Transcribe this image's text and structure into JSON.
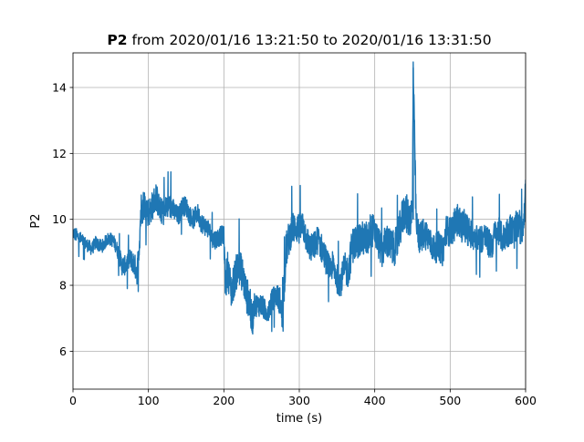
{
  "chart_data": {
    "type": "line",
    "title_bold": "P2",
    "title_rest": " from 2020/01/16 13:21:50 to 2020/01/16 13:31:50",
    "xlabel": "time (s)",
    "ylabel": "P2",
    "xlim": [
      0,
      600
    ],
    "ylim": [
      4.85,
      15.05
    ],
    "xticks": [
      0,
      100,
      200,
      300,
      400,
      500,
      600
    ],
    "yticks": [
      6,
      8,
      10,
      12,
      14
    ],
    "grid": true,
    "series": [
      {
        "color": "#1f77b4",
        "x": [
          0,
          5,
          10,
          15,
          20,
          25,
          30,
          35,
          40,
          45,
          50,
          55,
          60,
          65,
          70,
          75,
          80,
          85,
          88,
          90,
          95,
          100,
          105,
          110,
          115,
          120,
          125,
          130,
          135,
          140,
          145,
          150,
          155,
          160,
          165,
          170,
          175,
          180,
          185,
          190,
          195,
          200,
          202,
          205,
          210,
          215,
          220,
          225,
          230,
          235,
          237,
          240,
          245,
          250,
          255,
          260,
          265,
          270,
          275,
          278,
          282,
          285,
          290,
          295,
          300,
          305,
          310,
          315,
          320,
          325,
          330,
          335,
          340,
          345,
          350,
          355,
          360,
          365,
          370,
          375,
          380,
          385,
          390,
          395,
          400,
          405,
          410,
          415,
          420,
          425,
          430,
          435,
          440,
          445,
          450,
          451,
          455,
          460,
          465,
          470,
          475,
          480,
          485,
          490,
          495,
          500,
          505,
          510,
          515,
          520,
          525,
          530,
          535,
          540,
          545,
          550,
          555,
          560,
          565,
          570,
          575,
          580,
          585,
          590,
          595,
          600
        ],
        "y": [
          9.6,
          9.5,
          9.4,
          9.3,
          9.2,
          9.1,
          9.3,
          9.2,
          9.2,
          9.4,
          9.4,
          9.3,
          9.0,
          8.6,
          8.6,
          8.8,
          8.7,
          8.4,
          9.3,
          10.3,
          10.5,
          10.2,
          10.4,
          10.7,
          10.3,
          10.2,
          10.4,
          10.4,
          10.2,
          10.1,
          10.4,
          10.4,
          10.1,
          10.0,
          10.2,
          9.9,
          9.8,
          9.7,
          9.4,
          9.4,
          9.5,
          9.5,
          8.0,
          8.5,
          7.8,
          8.3,
          8.6,
          8.3,
          7.7,
          7.5,
          6.7,
          7.4,
          7.4,
          7.4,
          7.2,
          7.3,
          7.6,
          7.7,
          7.5,
          6.8,
          9.0,
          9.3,
          9.7,
          9.8,
          9.7,
          9.8,
          9.4,
          9.1,
          9.2,
          9.4,
          9.1,
          8.8,
          8.5,
          8.6,
          8.2,
          8.1,
          8.5,
          8.4,
          9.2,
          9.3,
          9.4,
          9.4,
          9.4,
          9.7,
          9.6,
          9.3,
          9.0,
          9.4,
          9.2,
          9.1,
          9.3,
          9.9,
          10.3,
          10.0,
          10.2,
          14.6,
          9.8,
          9.4,
          9.6,
          9.5,
          9.2,
          9.1,
          9.2,
          9.0,
          9.7,
          9.6,
          9.8,
          10.0,
          9.8,
          9.8,
          9.6,
          9.5,
          9.5,
          9.4,
          9.5,
          9.3,
          9.2,
          9.6,
          9.6,
          9.4,
          9.6,
          9.7,
          9.6,
          9.9,
          9.6,
          10.7
        ],
        "noise": [
          0.2,
          0.22,
          0.22,
          0.2,
          0.2,
          0.2,
          0.2,
          0.2,
          0.2,
          0.2,
          0.2,
          0.2,
          0.25,
          0.3,
          0.3,
          0.3,
          0.35,
          0.4,
          0.4,
          0.55,
          0.45,
          0.45,
          0.45,
          0.45,
          0.4,
          0.4,
          0.4,
          0.4,
          0.3,
          0.3,
          0.3,
          0.3,
          0.3,
          0.3,
          0.3,
          0.3,
          0.3,
          0.3,
          0.3,
          0.3,
          0.3,
          0.3,
          0.55,
          0.55,
          0.55,
          0.55,
          0.55,
          0.55,
          0.55,
          0.55,
          0.6,
          0.35,
          0.35,
          0.35,
          0.35,
          0.35,
          0.35,
          0.35,
          0.45,
          0.55,
          0.55,
          0.55,
          0.5,
          0.5,
          0.5,
          0.5,
          0.45,
          0.45,
          0.45,
          0.45,
          0.45,
          0.45,
          0.4,
          0.45,
          0.45,
          0.45,
          0.5,
          0.5,
          0.55,
          0.55,
          0.55,
          0.55,
          0.55,
          0.55,
          0.5,
          0.5,
          0.5,
          0.55,
          0.55,
          0.55,
          0.55,
          0.6,
          0.6,
          0.6,
          0.55,
          0.55,
          0.5,
          0.5,
          0.5,
          0.45,
          0.45,
          0.45,
          0.45,
          0.45,
          0.45,
          0.45,
          0.5,
          0.5,
          0.5,
          0.5,
          0.45,
          0.45,
          0.45,
          0.45,
          0.45,
          0.45,
          0.45,
          0.45,
          0.45,
          0.45,
          0.45,
          0.5,
          0.5,
          0.5,
          0.5,
          0.55
        ]
      }
    ]
  }
}
